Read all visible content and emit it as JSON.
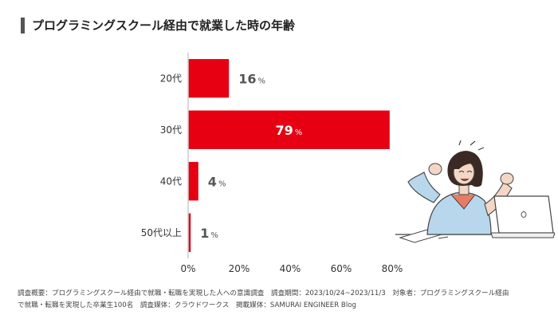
{
  "title": "プログラミングスクール経由で就業した時の年齢",
  "colors": {
    "bar": "#e60012",
    "title_bar": "#555555",
    "axis": "#cccccc",
    "label_dark": "#555555",
    "label_light": "#ffffff"
  },
  "chart_data": {
    "type": "bar",
    "orientation": "horizontal",
    "categories": [
      "20代",
      "30代",
      "40代",
      "50代以上"
    ],
    "values": [
      16,
      79,
      4,
      1
    ],
    "value_suffix": "%",
    "title": "プログラミングスクール経由で就業した時の年齢",
    "xlabel": "",
    "ylabel": "",
    "xlim": [
      0,
      80
    ],
    "x_ticks": [
      "0%",
      "20%",
      "40%",
      "60%",
      "80%"
    ],
    "grid": false,
    "legend": "none"
  },
  "footnote": {
    "line1": "調査概要：プログラミングスクール経由で就職・転職を実現した人への意識調査　調査期間：2023/10/24~2023/11/3　対象者：プログラミングスクール経由",
    "line2": "で就職・転職を実現した卒業生100名　調査媒体：クラウドワークス　掲載媒体：SAMURAI ENGINEER Blog"
  },
  "illustration": {
    "icon": "woman-celebrating-at-laptop-illustration"
  }
}
